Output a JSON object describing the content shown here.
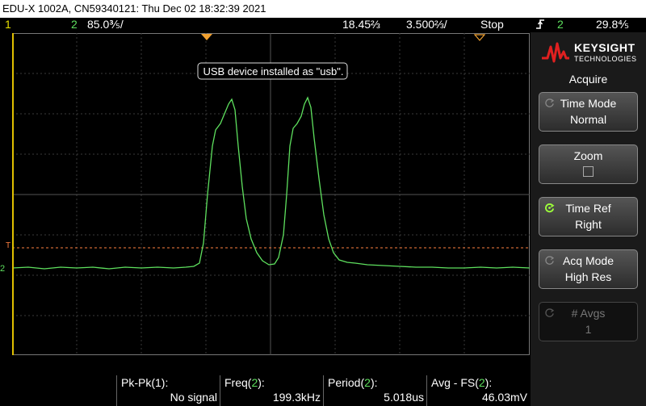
{
  "window": {
    "title": "EDU-X 1002A, CN59340121: Thu Dec 02 18:32:39 2021"
  },
  "status": {
    "ch1_label": "1",
    "ch2_label": "2",
    "ch2_scale": "85.0⅗/",
    "time_scale": "18.45⅔",
    "delay": "3.500⅔/",
    "run_state": "Stop",
    "trigger_icon": "trigger-edge-icon",
    "trigger_source": "2",
    "trigger_level": "29.8⅘"
  },
  "overlay": {
    "message": "USB device installed as \"usb\"."
  },
  "markers": {
    "trigger_level_tag": "T",
    "ground_tag": "2"
  },
  "panel": {
    "brand": "KEYSIGHT",
    "brand_sub": "TECHNOLOGIES",
    "menu_title": "Acquire",
    "softkeys": [
      {
        "label": "Time Mode",
        "value": "Normal"
      },
      {
        "label": "Zoom",
        "value": ""
      },
      {
        "label": "Time Ref",
        "value": "Right"
      },
      {
        "label": "Acq Mode",
        "value": "High Res"
      },
      {
        "label": "# Avgs",
        "value": "1"
      }
    ]
  },
  "measurements": [
    {
      "label": "Pk-Pk(1):",
      "value": "No signal"
    },
    {
      "label": "Freq(2):",
      "value": "199.3kHz"
    },
    {
      "label": "Period(2):",
      "value": "5.018us"
    },
    {
      "label": "Avg - FS(2):",
      "value": "46.03mV"
    }
  ],
  "colors": {
    "ch1": "#e8e000",
    "ch2": "#5ee05e",
    "trigger_line": "#ff8040",
    "marker": "#f0a030"
  }
}
